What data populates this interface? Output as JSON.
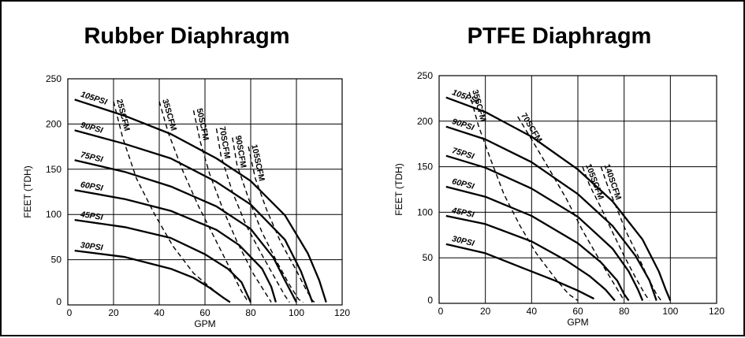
{
  "colors": {
    "ink": "#000000",
    "background": "#ffffff"
  },
  "chart_data": [
    {
      "type": "line",
      "title": "Rubber Diaphragm",
      "xlabel": "GPM",
      "ylabel": "FEET (TDH)",
      "xlim": [
        0,
        120
      ],
      "ylim": [
        0,
        250
      ],
      "xticks": [
        0,
        20,
        40,
        60,
        80,
        100,
        120
      ],
      "yticks": [
        0,
        50,
        100,
        150,
        200,
        250
      ],
      "grid": true,
      "pressure_curves": [
        {
          "name": "105PSI",
          "points": [
            [
              3,
              227
            ],
            [
              25,
              209
            ],
            [
              45,
              189
            ],
            [
              65,
              162
            ],
            [
              80,
              137
            ],
            [
              95,
              99
            ],
            [
              105,
              57
            ],
            [
              110,
              27
            ],
            [
              113,
              3
            ]
          ]
        },
        {
          "name": "90PSI",
          "points": [
            [
              3,
              193
            ],
            [
              25,
              178
            ],
            [
              45,
              162
            ],
            [
              65,
              136
            ],
            [
              80,
              111
            ],
            [
              95,
              72
            ],
            [
              102,
              37
            ],
            [
              107,
              3
            ]
          ]
        },
        {
          "name": "75PSI",
          "points": [
            [
              3,
              160
            ],
            [
              25,
              147
            ],
            [
              45,
              131
            ],
            [
              65,
              109
            ],
            [
              80,
              84
            ],
            [
              90,
              52
            ],
            [
              95,
              27
            ],
            [
              100,
              3
            ]
          ]
        },
        {
          "name": "60PSI",
          "points": [
            [
              3,
              127
            ],
            [
              25,
              117
            ],
            [
              45,
              104
            ],
            [
              65,
              83
            ],
            [
              75,
              66
            ],
            [
              85,
              40
            ],
            [
              89,
              20
            ],
            [
              91,
              3
            ]
          ]
        },
        {
          "name": "45PSI",
          "points": [
            [
              3,
              94
            ],
            [
              25,
              86
            ],
            [
              45,
              74
            ],
            [
              60,
              56
            ],
            [
              70,
              40
            ],
            [
              76,
              25
            ],
            [
              80,
              3
            ]
          ]
        },
        {
          "name": "30PSI",
          "points": [
            [
              3,
              60
            ],
            [
              25,
              53
            ],
            [
              45,
              40
            ],
            [
              55,
              30
            ],
            [
              62,
              19
            ],
            [
              68,
              8
            ],
            [
              71,
              3
            ]
          ]
        }
      ],
      "air_curves": [
        {
          "name": "25SCFM",
          "points": [
            [
              20,
              225
            ],
            [
              24,
              185
            ],
            [
              30,
              140
            ],
            [
              38,
              100
            ],
            [
              46,
              65
            ],
            [
              55,
              35
            ],
            [
              62,
              20
            ],
            [
              67,
              10
            ]
          ]
        },
        {
          "name": "35SCFM",
          "points": [
            [
              40,
              225
            ],
            [
              44,
              190
            ],
            [
              50,
              150
            ],
            [
              57,
              110
            ],
            [
              65,
              70
            ],
            [
              71,
              40
            ],
            [
              76,
              15
            ],
            [
              79,
              3
            ]
          ]
        },
        {
          "name": "50SCFM",
          "points": [
            [
              55,
              215
            ],
            [
              58,
              180
            ],
            [
              62,
              145
            ],
            [
              68,
              105
            ],
            [
              74,
              70
            ],
            [
              81,
              35
            ],
            [
              86,
              15
            ],
            [
              89,
              3
            ]
          ]
        },
        {
          "name": "70SCFM",
          "points": [
            [
              65,
              195
            ],
            [
              67,
              165
            ],
            [
              72,
              125
            ],
            [
              78,
              88
            ],
            [
              85,
              55
            ],
            [
              91,
              28
            ],
            [
              95,
              10
            ],
            [
              97,
              3
            ]
          ]
        },
        {
          "name": "90SCFM",
          "points": [
            [
              72,
              185
            ],
            [
              74,
              155
            ],
            [
              79,
              118
            ],
            [
              85,
              80
            ],
            [
              92,
              45
            ],
            [
              97,
              22
            ],
            [
              101,
              6
            ],
            [
              103,
              3
            ]
          ]
        },
        {
          "name": "105SCFM",
          "points": [
            [
              79,
              175
            ],
            [
              82,
              140
            ],
            [
              87,
              105
            ],
            [
              93,
              70
            ],
            [
              100,
              38
            ],
            [
              104,
              18
            ],
            [
              107,
              5
            ],
            [
              108,
              3
            ]
          ]
        }
      ]
    },
    {
      "type": "line",
      "title": "PTFE Diaphragm",
      "xlabel": "GPM",
      "ylabel": "FEET (TDH)",
      "xlim": [
        0,
        120
      ],
      "ylim": [
        0,
        250
      ],
      "xticks": [
        0,
        20,
        40,
        60,
        80,
        100,
        120
      ],
      "yticks": [
        0,
        50,
        100,
        150,
        200,
        250
      ],
      "grid": true,
      "pressure_curves": [
        {
          "name": "105PSI",
          "points": [
            [
              3,
              226
            ],
            [
              20,
              210
            ],
            [
              40,
              183
            ],
            [
              60,
              147
            ],
            [
              75,
              112
            ],
            [
              88,
              70
            ],
            [
              95,
              35
            ],
            [
              98,
              15
            ],
            [
              100,
              3
            ]
          ]
        },
        {
          "name": "90PSI",
          "points": [
            [
              3,
              194
            ],
            [
              20,
              180
            ],
            [
              40,
              155
            ],
            [
              60,
              120
            ],
            [
              75,
              85
            ],
            [
              85,
              52
            ],
            [
              91,
              25
            ],
            [
              94,
              3
            ]
          ]
        },
        {
          "name": "75PSI",
          "points": [
            [
              3,
              162
            ],
            [
              20,
              149
            ],
            [
              40,
              126
            ],
            [
              60,
              95
            ],
            [
              75,
              60
            ],
            [
              82,
              35
            ],
            [
              86,
              15
            ],
            [
              88,
              3
            ]
          ]
        },
        {
          "name": "60PSI",
          "points": [
            [
              3,
              128
            ],
            [
              20,
              117
            ],
            [
              40,
              96
            ],
            [
              60,
              66
            ],
            [
              70,
              45
            ],
            [
              77,
              25
            ],
            [
              80,
              10
            ],
            [
              82,
              3
            ]
          ]
        },
        {
          "name": "45PSI",
          "points": [
            [
              3,
              96
            ],
            [
              20,
              87
            ],
            [
              40,
              68
            ],
            [
              55,
              47
            ],
            [
              65,
              30
            ],
            [
              72,
              15
            ],
            [
              76,
              3
            ]
          ]
        },
        {
          "name": "30PSI",
          "points": [
            [
              3,
              65
            ],
            [
              20,
              55
            ],
            [
              35,
              40
            ],
            [
              50,
              25
            ],
            [
              60,
              14
            ],
            [
              67,
              5
            ]
          ]
        }
      ],
      "air_curves": [
        {
          "name": "35SCFM",
          "points": [
            [
              13,
              232
            ],
            [
              17,
              195
            ],
            [
              22,
              160
            ],
            [
              28,
              120
            ],
            [
              35,
              85
            ],
            [
              42,
              55
            ],
            [
              50,
              28
            ],
            [
              56,
              10
            ],
            [
              60,
              3
            ]
          ]
        },
        {
          "name": "70SCFM",
          "points": [
            [
              34,
              205
            ],
            [
              40,
              180
            ],
            [
              47,
              150
            ],
            [
              55,
              115
            ],
            [
              62,
              80
            ],
            [
              70,
              45
            ],
            [
              76,
              20
            ],
            [
              80,
              3
            ]
          ]
        },
        {
          "name": "105SCFM",
          "points": [
            [
              62,
              150
            ],
            [
              65,
              130
            ],
            [
              70,
              105
            ],
            [
              75,
              78
            ],
            [
              80,
              52
            ],
            [
              85,
              28
            ],
            [
              89,
              10
            ],
            [
              91,
              3
            ]
          ]
        },
        {
          "name": "140SCFM",
          "points": [
            [
              70,
              150
            ],
            [
              73,
              128
            ],
            [
              77,
              103
            ],
            [
              81,
              78
            ],
            [
              86,
              52
            ],
            [
              90,
              30
            ],
            [
              94,
              10
            ],
            [
              96,
              3
            ]
          ]
        }
      ]
    }
  ]
}
